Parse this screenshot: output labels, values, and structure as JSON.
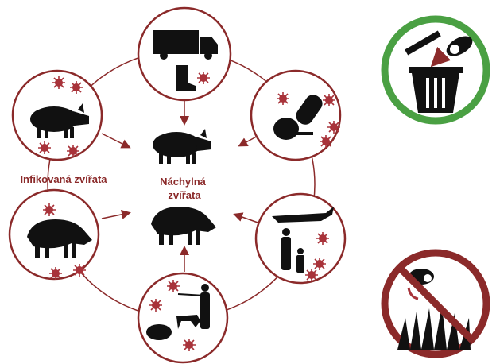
{
  "labels": {
    "infected": "Infikovaná zvířata",
    "susceptible": [
      "Náchylná",
      "zvířata"
    ]
  }
}
